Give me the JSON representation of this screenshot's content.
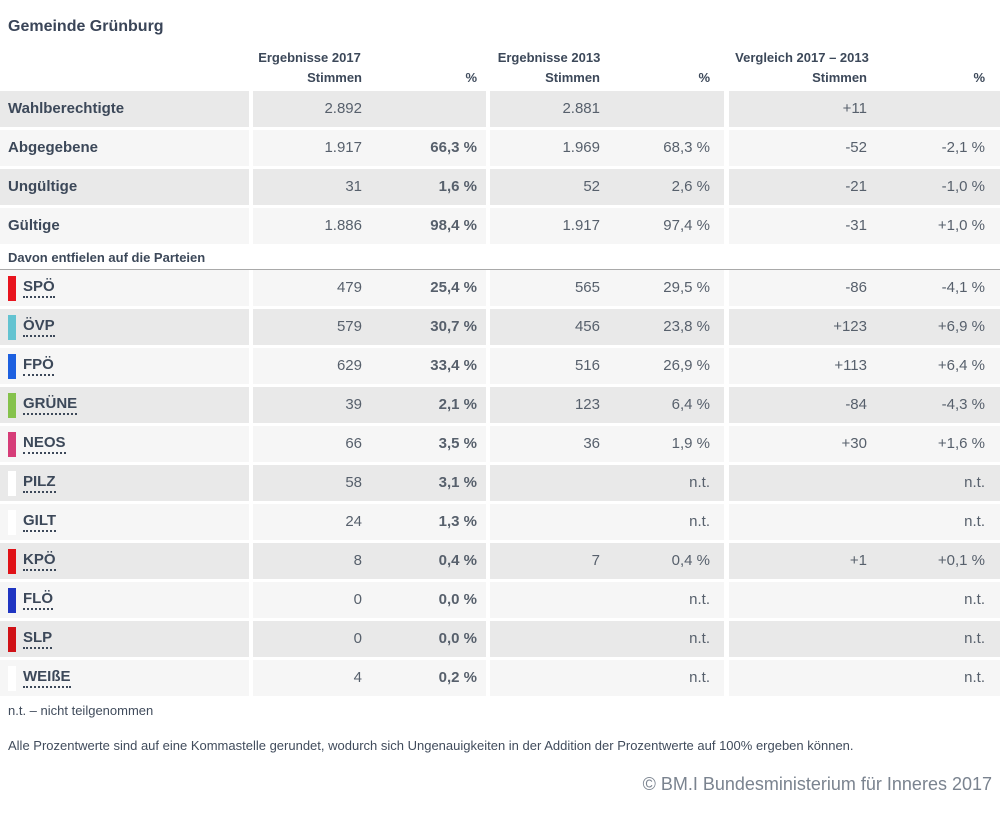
{
  "title": "Gemeinde Grünburg",
  "table": {
    "groups": [
      {
        "title": "Ergebnisse 2017"
      },
      {
        "title": "Ergebnisse 2013"
      },
      {
        "title": "Vergleich 2017 – 2013"
      }
    ],
    "subheader": {
      "stimmen": "Stimmen",
      "percent": "%"
    },
    "stat_rows": [
      {
        "label": "Wahlberechtigte",
        "s2017": "2.892",
        "p2017": "",
        "s2013": "2.881",
        "p2013": "",
        "sdiff": "+11",
        "pdiff": ""
      },
      {
        "label": "Abgegebene",
        "s2017": "1.917",
        "p2017": "66,3 %",
        "s2013": "1.969",
        "p2013": "68,3 %",
        "sdiff": "-52",
        "pdiff": "-2,1 %"
      },
      {
        "label": "Ungültige",
        "s2017": "31",
        "p2017": "1,6 %",
        "s2013": "52",
        "p2013": "2,6 %",
        "sdiff": "-21",
        "pdiff": "-1,0 %"
      },
      {
        "label": "Gültige",
        "s2017": "1.886",
        "p2017": "98,4 %",
        "s2013": "1.917",
        "p2013": "97,4 %",
        "sdiff": "-31",
        "pdiff": "+1,0 %"
      }
    ],
    "section_header": "Davon entfielen auf die Parteien",
    "party_rows": [
      {
        "label": "SPÖ",
        "color": "#e8141e",
        "s2017": "479",
        "p2017": "25,4 %",
        "s2013": "565",
        "p2013": "29,5 %",
        "sdiff": "-86",
        "pdiff": "-4,1 %"
      },
      {
        "label": "ÖVP",
        "color": "#63c3d1",
        "s2017": "579",
        "p2017": "30,7 %",
        "s2013": "456",
        "p2013": "23,8 %",
        "sdiff": "+123",
        "pdiff": "+6,9 %"
      },
      {
        "label": "FPÖ",
        "color": "#1d60e0",
        "s2017": "629",
        "p2017": "33,4 %",
        "s2013": "516",
        "p2013": "26,9 %",
        "sdiff": "+113",
        "pdiff": "+6,4 %"
      },
      {
        "label": "GRÜNE",
        "color": "#85c24c",
        "s2017": "39",
        "p2017": "2,1 %",
        "s2013": "123",
        "p2013": "6,4 %",
        "sdiff": "-84",
        "pdiff": "-4,3 %"
      },
      {
        "label": "NEOS",
        "color": "#d63d78",
        "s2017": "66",
        "p2017": "3,5 %",
        "s2013": "36",
        "p2013": "1,9 %",
        "sdiff": "+30",
        "pdiff": "+1,6 %"
      },
      {
        "label": "PILZ",
        "color": "#ffffff",
        "s2017": "58",
        "p2017": "3,1 %",
        "s2013": "",
        "p2013": "n.t.",
        "sdiff": "",
        "pdiff": "n.t."
      },
      {
        "label": "GILT",
        "color": "#ffffff",
        "s2017": "24",
        "p2017": "1,3 %",
        "s2013": "",
        "p2013": "n.t.",
        "sdiff": "",
        "pdiff": "n.t."
      },
      {
        "label": "KPÖ",
        "color": "#e01117",
        "s2017": "8",
        "p2017": "0,4 %",
        "s2013": "7",
        "p2013": "0,4 %",
        "sdiff": "+1",
        "pdiff": "+0,1 %"
      },
      {
        "label": "FLÖ",
        "color": "#1f35c2",
        "s2017": "0",
        "p2017": "0,0 %",
        "s2013": "",
        "p2013": "n.t.",
        "sdiff": "",
        "pdiff": "n.t."
      },
      {
        "label": "SLP",
        "color": "#d01117",
        "s2017": "0",
        "p2017": "0,0 %",
        "s2013": "",
        "p2013": "n.t.",
        "sdiff": "",
        "pdiff": "n.t."
      },
      {
        "label": "WEIßE",
        "color": "#ffffff",
        "s2017": "4",
        "p2017": "0,2 %",
        "s2013": "",
        "p2013": "n.t.",
        "sdiff": "",
        "pdiff": "n.t."
      }
    ]
  },
  "footnotes": {
    "nt": "n.t. – nicht teilgenommen",
    "rounding": "Alle Prozentwerte sind auf eine Kommastelle gerundet, wodurch sich Ungenauigkeiten in der Addition der Prozentwerte auf 100% ergeben können."
  },
  "copyright": "© BM.I Bundesministerium für Inneres 2017"
}
